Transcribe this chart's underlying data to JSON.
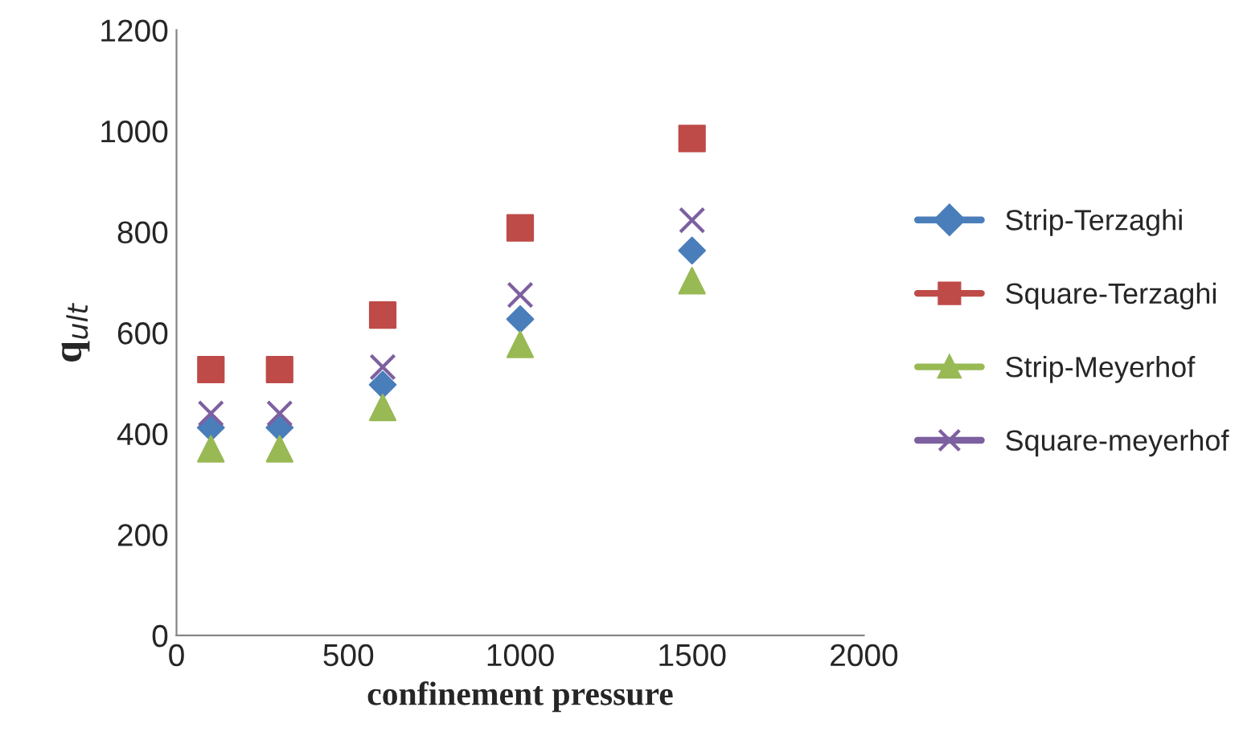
{
  "chart_data": {
    "type": "scatter",
    "xlabel": "confinement pressure",
    "ylabel": "q$_{ult}$",
    "x": [
      100,
      300,
      600,
      1000,
      1500
    ],
    "series": [
      {
        "name": "Strip-Terzaghi",
        "color": "#4a7ebb",
        "marker": "diamond",
        "values": [
          412,
          412,
          497,
          627,
          763
        ]
      },
      {
        "name": "Square-Terzaghi",
        "color": "#be4b48",
        "marker": "square",
        "values": [
          527,
          527,
          635,
          808,
          985
        ]
      },
      {
        "name": "Strip-Meyerhof",
        "color": "#98b954",
        "marker": "triangle",
        "values": [
          370,
          370,
          452,
          577,
          703
        ]
      },
      {
        "name": "Square-meyerhof",
        "color": "#7d60a0",
        "marker": "cross",
        "values": [
          440,
          440,
          532,
          675,
          823
        ]
      }
    ],
    "xlim": [
      0,
      2000
    ],
    "xticks": [
      0,
      500,
      1000,
      1500,
      2000
    ],
    "ylim": [
      0,
      1200
    ],
    "yticks": [
      0,
      200,
      400,
      600,
      800,
      1000,
      1200
    ],
    "grid": false,
    "legend": "right"
  }
}
